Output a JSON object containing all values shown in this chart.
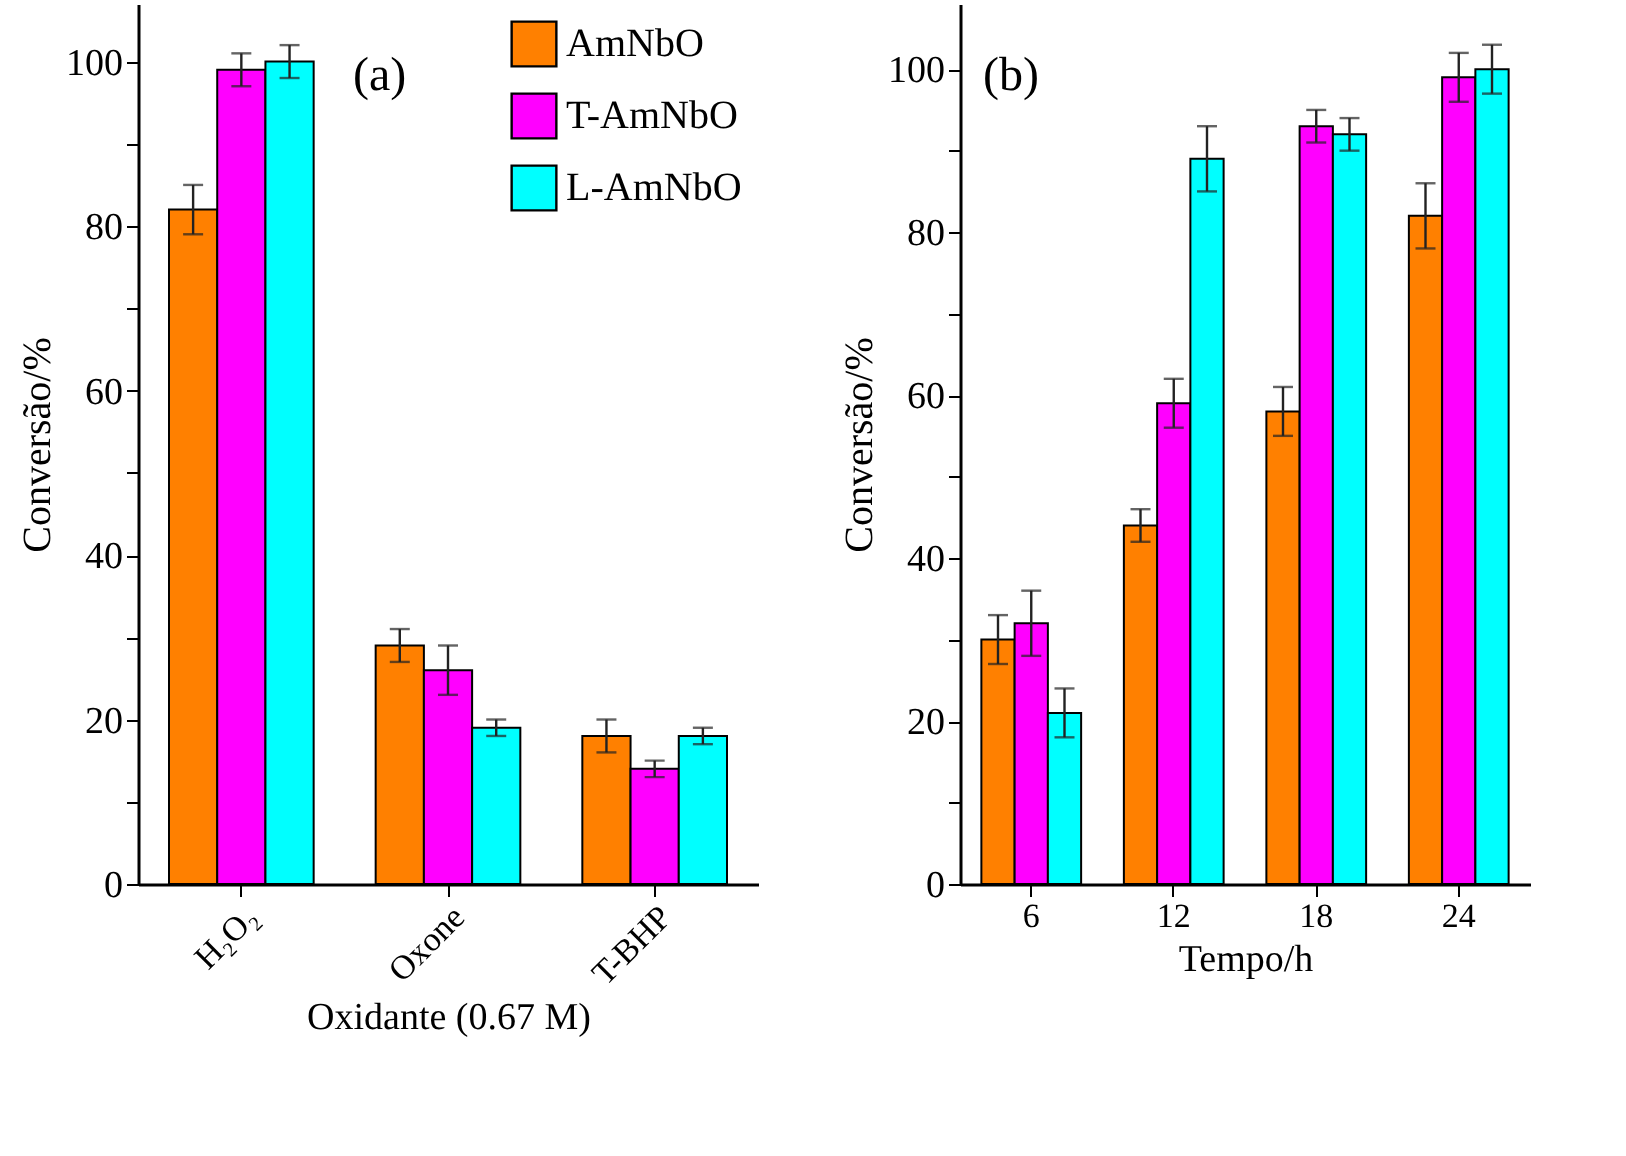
{
  "chart_data": [
    {
      "type": "bar",
      "title": "(a)",
      "xlabel": "Oxidante (0.67 M)",
      "ylabel": "Conversão/%",
      "categories": [
        "H₂O₂",
        "Oxone",
        "T-BHP"
      ],
      "ylim": [
        0,
        107
      ],
      "yticks": [
        0,
        {
          "value": 10,
          "label": null
        },
        20,
        {
          "value": 30,
          "label": null
        },
        40,
        {
          "value": 50,
          "label": null
        },
        60,
        {
          "value": 70,
          "label": null
        },
        80,
        {
          "value": 90,
          "label": null
        },
        100
      ],
      "legend": "top right",
      "series": [
        {
          "name": "AmNbO",
          "color": "#ff8000",
          "values": [
            82,
            29,
            18
          ],
          "errors": [
            3,
            2,
            2
          ]
        },
        {
          "name": "T-AmNbO",
          "color": "#ff00ff",
          "values": [
            99,
            26,
            14
          ],
          "errors": [
            2,
            3,
            1
          ]
        },
        {
          "name": "L-AmNbO",
          "color": "#00ffff",
          "values": [
            100,
            19,
            18
          ],
          "errors": [
            2,
            1,
            1
          ]
        }
      ]
    },
    {
      "type": "bar",
      "title": "(b)",
      "xlabel": "Tempo/h",
      "ylabel": "Conversão/%",
      "categories": [
        "6",
        "12",
        "18",
        "24"
      ],
      "ylim": [
        0,
        108
      ],
      "yticks": [
        0,
        {
          "value": 10,
          "label": null
        },
        20,
        {
          "value": 30,
          "label": null
        },
        40,
        {
          "value": 50,
          "label": null
        },
        60,
        {
          "value": 70,
          "label": null
        },
        80,
        {
          "value": 90,
          "label": null
        },
        100
      ],
      "series": [
        {
          "color": "#ff8000",
          "values": [
            30,
            44,
            58,
            82
          ],
          "errors": [
            3,
            2,
            3,
            4
          ]
        },
        {
          "color": "#ff00ff",
          "values": [
            32,
            59,
            93,
            99
          ],
          "errors": [
            4,
            3,
            2,
            3
          ]
        },
        {
          "color": "#00ffff",
          "values": [
            21,
            89,
            92,
            100
          ],
          "errors": [
            3,
            4,
            2,
            3
          ]
        }
      ]
    }
  ]
}
